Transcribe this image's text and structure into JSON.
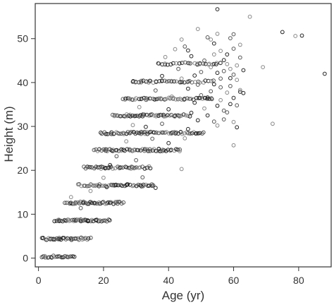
{
  "chart_data": {
    "type": "scatter",
    "xlabel": "Age (yr)",
    "ylabel": "Height (m)",
    "xlim": [
      -1,
      90
    ],
    "ylim": [
      -2,
      58
    ],
    "x_ticks": [
      0,
      20,
      40,
      60,
      80
    ],
    "y_ticks": [
      0,
      10,
      20,
      30,
      40,
      50
    ],
    "grid": false,
    "marker": "open circle",
    "marker_colors": [
      "#222222",
      "#555555",
      "#888888"
    ],
    "bands": [
      {
        "height": 0.3,
        "x_min": 1,
        "x_max": 11,
        "step": 0.45
      },
      {
        "height": 4.4,
        "x_min": 1,
        "x_max": 16,
        "step": 0.5
      },
      {
        "height": 8.6,
        "x_min": 5,
        "x_max": 22,
        "step": 0.5
      },
      {
        "height": 12.6,
        "x_min": 8,
        "x_max": 26,
        "step": 0.5
      },
      {
        "height": 16.6,
        "x_min": 12,
        "x_max": 36,
        "step": 0.6
      },
      {
        "height": 20.6,
        "x_min": 14,
        "x_max": 35,
        "step": 0.6
      },
      {
        "height": 24.6,
        "x_min": 17,
        "x_max": 44,
        "step": 0.6
      },
      {
        "height": 28.5,
        "x_min": 19,
        "x_max": 51,
        "step": 0.6
      },
      {
        "height": 32.5,
        "x_min": 23,
        "x_max": 47,
        "step": 0.6
      },
      {
        "height": 36.3,
        "x_min": 26,
        "x_max": 54,
        "step": 0.7
      },
      {
        "height": 40.2,
        "x_min": 29,
        "x_max": 54,
        "step": 0.8
      },
      {
        "height": 44.3,
        "x_min": 37,
        "x_max": 56,
        "step": 0.9
      }
    ],
    "points": [
      [
        10,
        13.9
      ],
      [
        13,
        11.4
      ],
      [
        16,
        15.3
      ],
      [
        20,
        18.3
      ],
      [
        22,
        21.2
      ],
      [
        21,
        16.2
      ],
      [
        24,
        23.2
      ],
      [
        27,
        26.6
      ],
      [
        29,
        30.3
      ],
      [
        31,
        34.4
      ],
      [
        30,
        22.3
      ],
      [
        35,
        27.2
      ],
      [
        33,
        29.9
      ],
      [
        36,
        38.2
      ],
      [
        38,
        41.5
      ],
      [
        39,
        45.8
      ],
      [
        42,
        47.6
      ],
      [
        44,
        49.8
      ],
      [
        45,
        48.2
      ],
      [
        46,
        47.3
      ],
      [
        47,
        46.0
      ],
      [
        45,
        44.6
      ],
      [
        43,
        43.1
      ],
      [
        48,
        41.6
      ],
      [
        49,
        52.2
      ],
      [
        52,
        50.3
      ],
      [
        53,
        49.8
      ],
      [
        54,
        48.9
      ],
      [
        55,
        56.7
      ],
      [
        55,
        51.1
      ],
      [
        54,
        46.4
      ],
      [
        56,
        47.2
      ],
      [
        57,
        45.1
      ],
      [
        58,
        44.2
      ],
      [
        59,
        43.1
      ],
      [
        60,
        41.8
      ],
      [
        61,
        40.6
      ],
      [
        59,
        39.2
      ],
      [
        58,
        37.7
      ],
      [
        60,
        36.5
      ],
      [
        62,
        37.9
      ],
      [
        56,
        36.0
      ],
      [
        55,
        34.7
      ],
      [
        57,
        33.6
      ],
      [
        59,
        35.1
      ],
      [
        56,
        38.9
      ],
      [
        55,
        42.2
      ],
      [
        53,
        43.5
      ],
      [
        51,
        45.0
      ],
      [
        50,
        42.4
      ],
      [
        49,
        39.5
      ],
      [
        50,
        37.1
      ],
      [
        51,
        34.1
      ],
      [
        52,
        32.5
      ],
      [
        54,
        31.1
      ],
      [
        55,
        30.2
      ],
      [
        57,
        31.6
      ],
      [
        58,
        33.2
      ],
      [
        60,
        31.0
      ],
      [
        61,
        29.8
      ],
      [
        52,
        36.6
      ],
      [
        53,
        38.0
      ],
      [
        54,
        39.6
      ],
      [
        56,
        40.9
      ],
      [
        57,
        42.6
      ],
      [
        58,
        46.4
      ],
      [
        62,
        45.7
      ],
      [
        63,
        42.8
      ],
      [
        61,
        43.9
      ],
      [
        59,
        41.0
      ],
      [
        60,
        47.7
      ],
      [
        62,
        38.3
      ],
      [
        63,
        37.6
      ],
      [
        61,
        34.8
      ],
      [
        59,
        50.1
      ],
      [
        60,
        51.0
      ],
      [
        62,
        48.6
      ],
      [
        60,
        25.7
      ],
      [
        65,
        55.0
      ],
      [
        69,
        43.5
      ],
      [
        72,
        30.6
      ],
      [
        75,
        51.5
      ],
      [
        79,
        50.6
      ],
      [
        81,
        50.7
      ],
      [
        88,
        42.0
      ],
      [
        44,
        20.3
      ],
      [
        36,
        16.0
      ],
      [
        40,
        26.2
      ],
      [
        42,
        28.6
      ],
      [
        46,
        29.4
      ],
      [
        47,
        33.1
      ],
      [
        48,
        35.4
      ],
      [
        46,
        38.6
      ],
      [
        44,
        40.9
      ],
      [
        41,
        36.8
      ],
      [
        40,
        33.9
      ],
      [
        38,
        30.6
      ],
      [
        37,
        24.9
      ],
      [
        34,
        20.9
      ],
      [
        32,
        18.4
      ],
      [
        45,
        27.3
      ],
      [
        49,
        31.4
      ]
    ]
  }
}
